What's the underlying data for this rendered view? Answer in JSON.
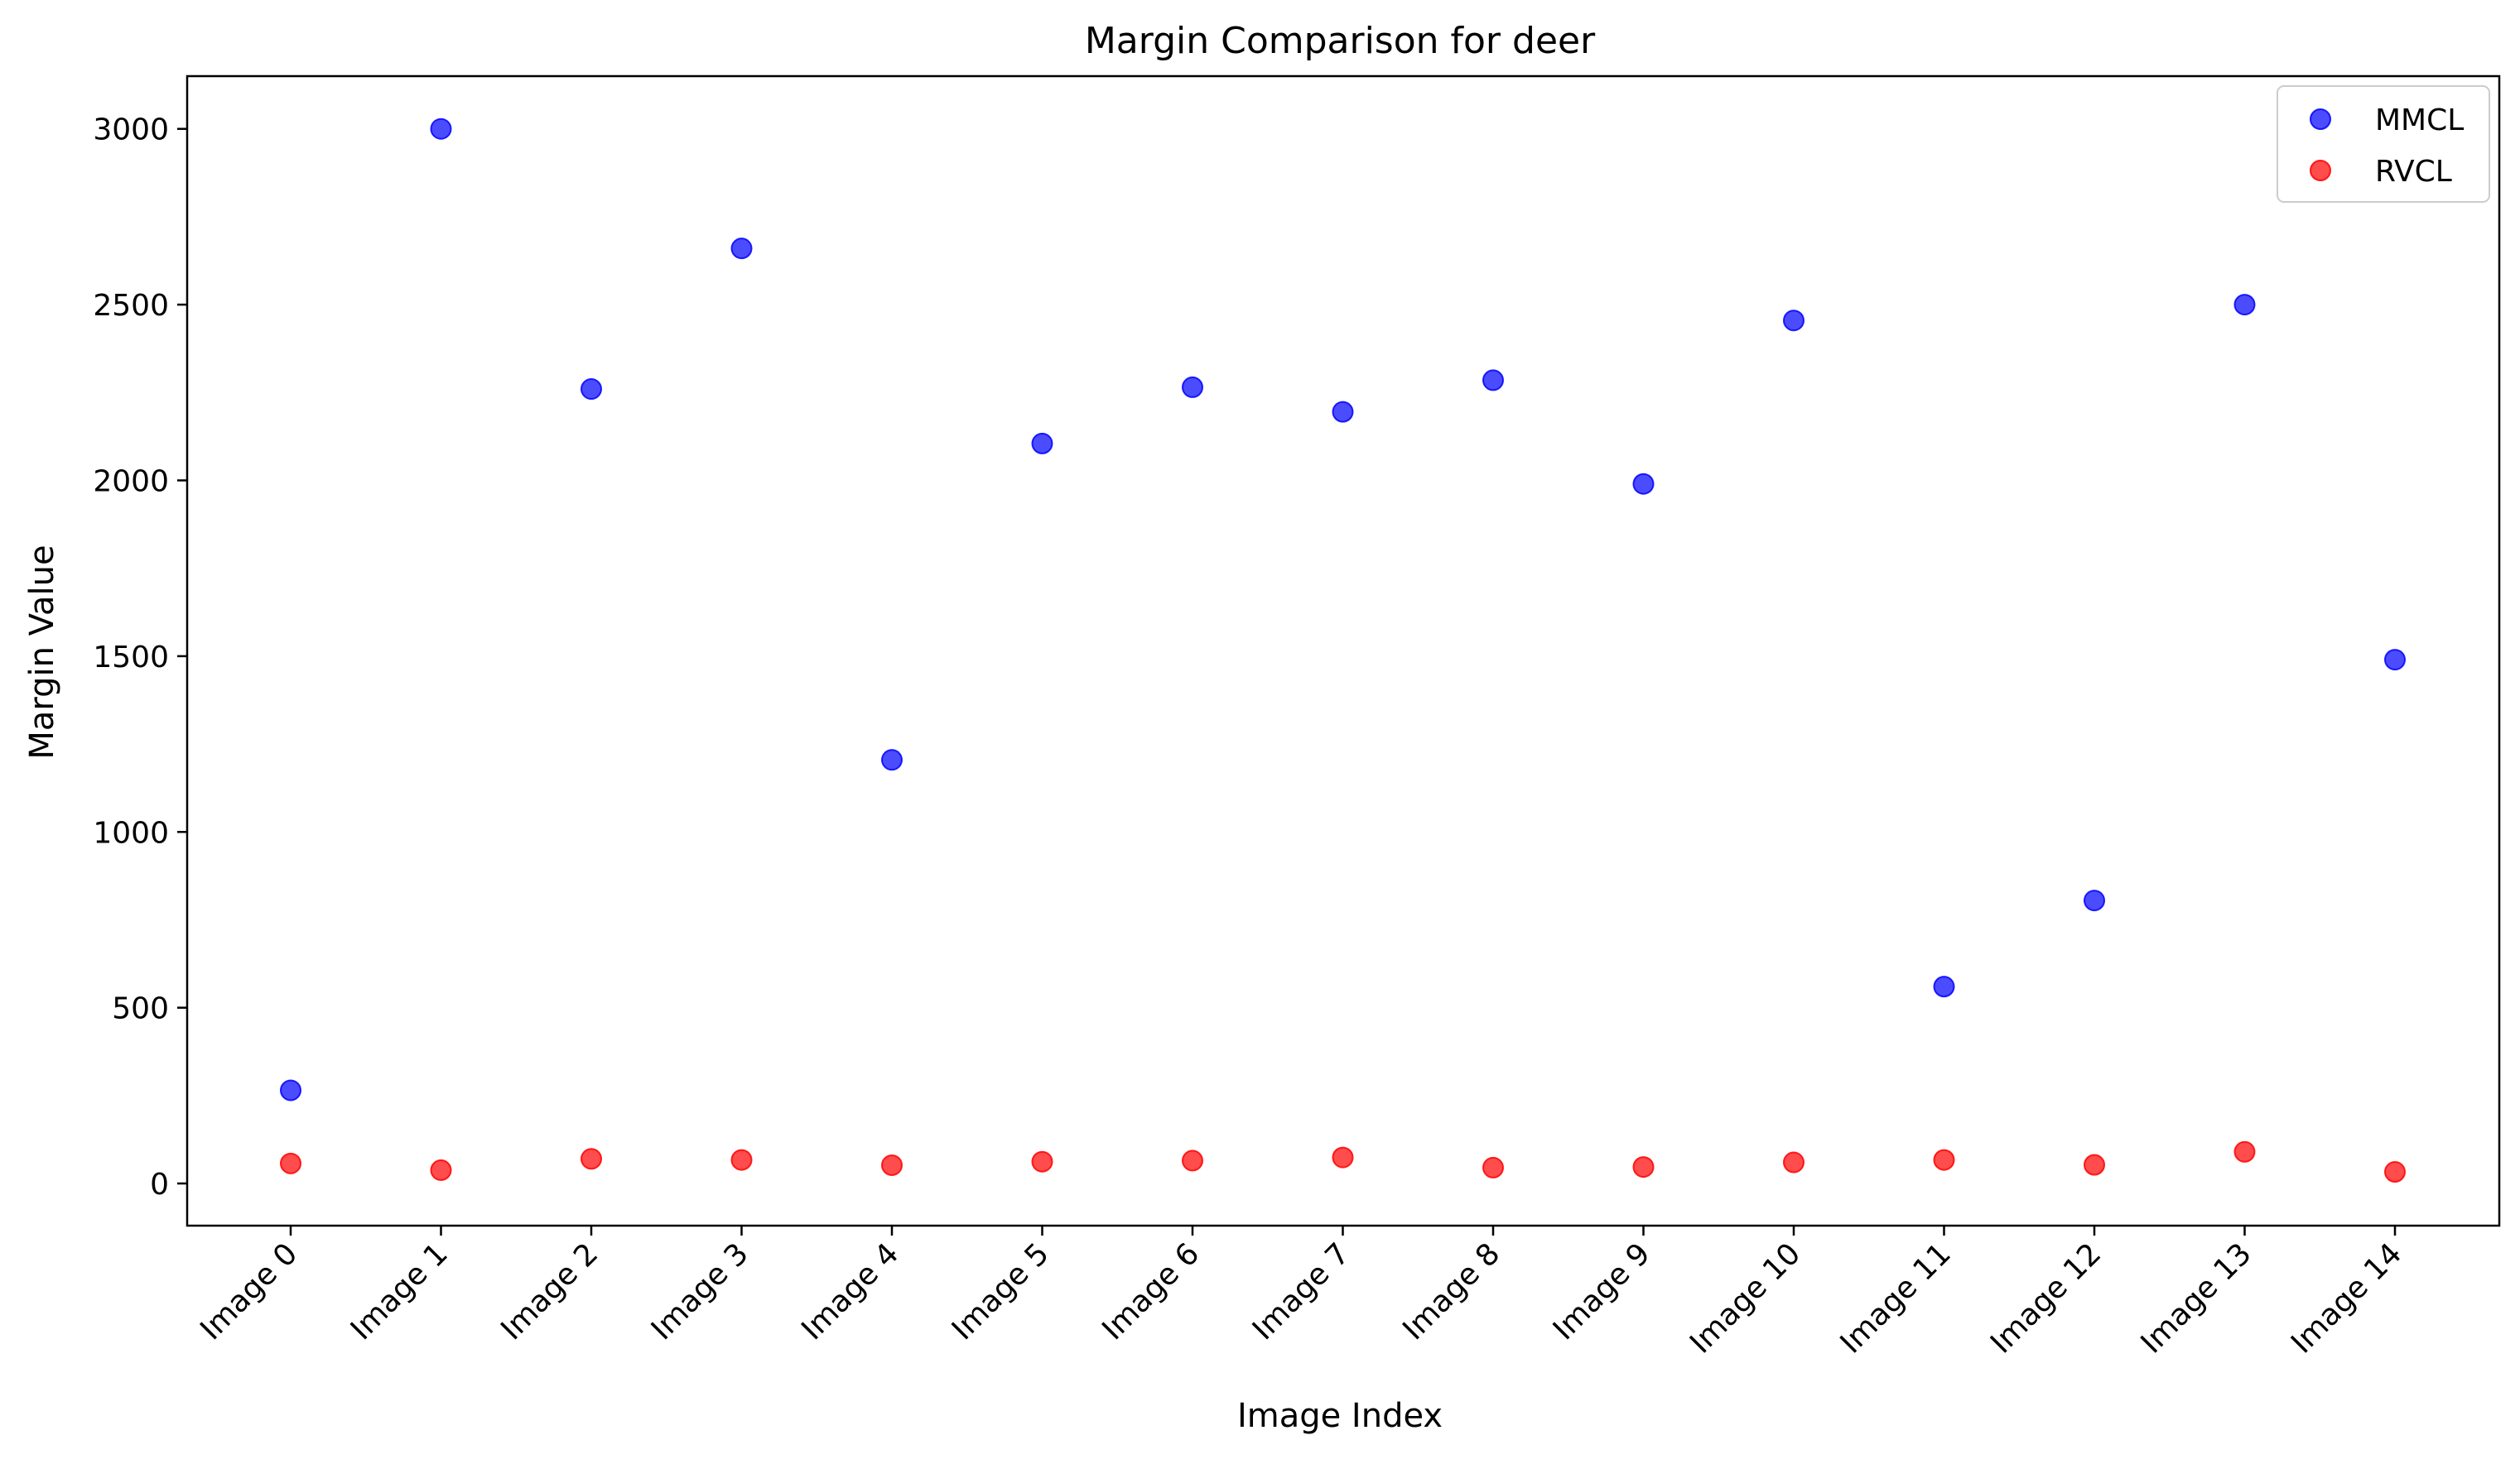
{
  "chart_data": {
    "type": "scatter",
    "title": "Margin Comparison for deer",
    "xlabel": "Image Index",
    "ylabel": "Margin Value",
    "categories": [
      "Image 0",
      "Image 1",
      "Image 2",
      "Image 3",
      "Image 4",
      "Image 5",
      "Image 6",
      "Image 7",
      "Image 8",
      "Image 9",
      "Image 10",
      "Image 11",
      "Image 12",
      "Image 13",
      "Image 14"
    ],
    "ylim": [
      -120,
      3150
    ],
    "yticks": [
      0,
      500,
      1000,
      1500,
      2000,
      2500,
      3000
    ],
    "ytick_labels": [
      "0",
      "500",
      "1000",
      "1500",
      "2000",
      "2500",
      "3000"
    ],
    "grid": false,
    "legend_position": "top-right",
    "series": [
      {
        "name": "MMCL",
        "color": "#0000ff",
        "values": [
          265,
          3000,
          2260,
          2660,
          1205,
          2105,
          2265,
          2195,
          2285,
          1990,
          2455,
          560,
          805,
          2500,
          1490
        ]
      },
      {
        "name": "RVCL",
        "color": "#ff0000",
        "values": [
          57,
          38,
          70,
          67,
          52,
          62,
          65,
          74,
          45,
          47,
          60,
          67,
          53,
          90,
          33
        ]
      }
    ]
  }
}
